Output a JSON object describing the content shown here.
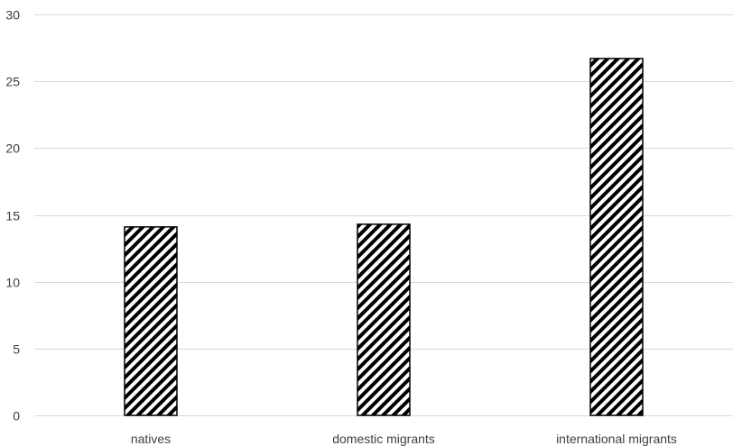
{
  "chart_data": {
    "type": "bar",
    "title": "",
    "xlabel": "",
    "ylabel": "",
    "categories": [
      "natives",
      "domestic migrants",
      "international migrants"
    ],
    "values": [
      14.1,
      14.3,
      26.7
    ],
    "ylim": [
      0,
      30
    ],
    "yticks": [
      0,
      5,
      10,
      15,
      20,
      25,
      30
    ],
    "ytick_labels": [
      "0",
      "5",
      "10",
      "15",
      "20",
      "25",
      "30"
    ],
    "grid": true,
    "legend": "none",
    "bar_pattern": "diagonal-hatch",
    "colors": {
      "bar_stroke": "#000000",
      "hatch": "#000000",
      "bar_fill": "#ffffff",
      "grid": "#d9d9d9",
      "text": "#404040"
    }
  }
}
